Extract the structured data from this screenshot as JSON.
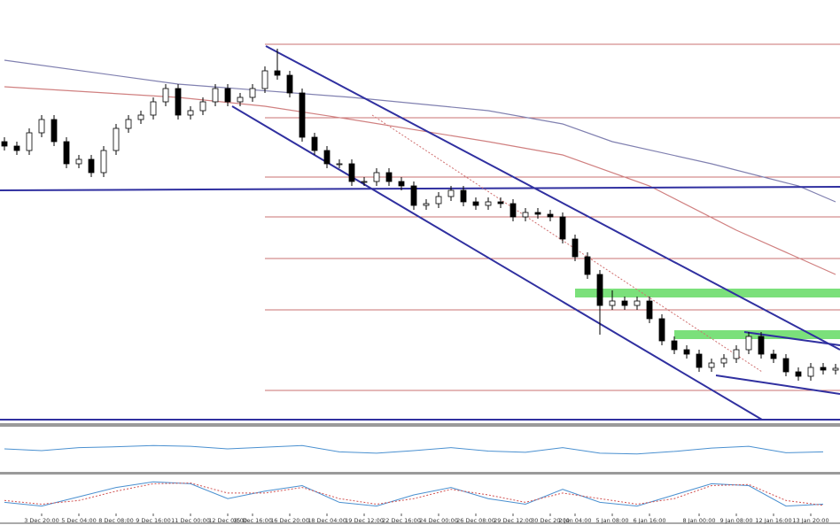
{
  "chart_data": {
    "type": "candlestick",
    "categories": [
      null,
      null,
      null,
      "3 Dec 20:00",
      null,
      null,
      "5 Dec 04:00",
      null,
      null,
      "8 Dec 08:00",
      null,
      null,
      "9 Dec 16:00",
      null,
      null,
      "11 Dec 00:00",
      null,
      null,
      "12 Dec 08:00",
      null,
      "15 Dec 16:00",
      null,
      null,
      "16 Dec 20:00",
      null,
      null,
      "18 Dec 04:00",
      null,
      null,
      "19 Dec 12:00",
      null,
      null,
      "22 Dec 16:00",
      null,
      null,
      "24 Dec 00:00",
      null,
      null,
      "26 Dec 08:00",
      null,
      null,
      "29 Dec 12:00",
      null,
      null,
      "30 Dec 20:00",
      null,
      "2 Jan 04:00",
      null,
      null,
      "5 Jan 08:00",
      null,
      null,
      "6 Jan 16:00",
      null,
      null,
      null,
      "8 Jan 00:00",
      null,
      null,
      "9 Jan 08:00",
      null,
      null,
      "12 Jan 16:00",
      null,
      null,
      "13 Jan 20:00",
      null,
      null
    ],
    "open": [
      318,
      313,
      308,
      328,
      343,
      318,
      293,
      298,
      283,
      308,
      333,
      343,
      348,
      363,
      378,
      348,
      353,
      363,
      378,
      363,
      368,
      378,
      398,
      393,
      373,
      323,
      308,
      293,
      293,
      273,
      273,
      283,
      273,
      268,
      246,
      248,
      256,
      263,
      250,
      246,
      250,
      248,
      233,
      238,
      236,
      233,
      208,
      188,
      168,
      133,
      138,
      133,
      138,
      118,
      93,
      83,
      78,
      63,
      68,
      73,
      83,
      98,
      78,
      73,
      58,
      53,
      63,
      60
    ],
    "high": [
      323,
      318,
      333,
      348,
      348,
      323,
      303,
      303,
      313,
      338,
      348,
      353,
      368,
      383,
      383,
      358,
      368,
      383,
      383,
      373,
      383,
      403,
      423,
      398,
      378,
      328,
      313,
      298,
      298,
      278,
      288,
      288,
      278,
      273,
      253,
      261,
      268,
      268,
      255,
      255,
      255,
      253,
      243,
      243,
      241,
      238,
      213,
      193,
      173,
      150,
      143,
      143,
      143,
      123,
      98,
      88,
      83,
      73,
      78,
      88,
      103,
      103,
      83,
      78,
      63,
      68,
      68,
      67
    ],
    "low": [
      308,
      303,
      303,
      323,
      313,
      288,
      288,
      278,
      278,
      303,
      328,
      338,
      343,
      358,
      343,
      343,
      348,
      358,
      358,
      358,
      363,
      373,
      388,
      368,
      318,
      303,
      288,
      288,
      268,
      268,
      268,
      268,
      263,
      241,
      241,
      243,
      251,
      245,
      241,
      241,
      243,
      228,
      228,
      231,
      228,
      203,
      183,
      163,
      100,
      128,
      128,
      128,
      113,
      88,
      78,
      73,
      58,
      58,
      63,
      68,
      78,
      73,
      68,
      53,
      48,
      48,
      55,
      55
    ],
    "close": [
      313,
      308,
      328,
      343,
      318,
      293,
      298,
      283,
      308,
      333,
      343,
      348,
      363,
      378,
      348,
      353,
      363,
      378,
      363,
      368,
      378,
      398,
      393,
      373,
      323,
      308,
      293,
      293,
      273,
      273,
      283,
      273,
      268,
      246,
      248,
      256,
      263,
      250,
      246,
      250,
      248,
      233,
      238,
      236,
      233,
      208,
      188,
      168,
      133,
      138,
      133,
      138,
      118,
      93,
      83,
      78,
      63,
      68,
      73,
      83,
      98,
      78,
      73,
      58,
      53,
      63,
      60,
      62
    ],
    "ylim": [
      0,
      478
    ],
    "series": [
      {
        "color": "#d08080",
        "x": [
          0,
          14,
          21,
          28,
          39,
          45,
          52,
          59,
          67
        ],
        "values": [
          380,
          368,
          358,
          343,
          318,
          303,
          268,
          218,
          168
        ]
      },
      {
        "color": "#8080b0",
        "x": [
          0,
          14,
          28,
          39,
          45,
          49,
          57,
          64,
          67
        ],
        "values": [
          410,
          383,
          368,
          353,
          338,
          318,
          293,
          268,
          250
        ]
      }
    ],
    "fib_levels": [
      428,
      345,
      278,
      233,
      186,
      128,
      37
    ],
    "fib_from": 21,
    "zones": [
      {
        "from": 46,
        "low": 142,
        "high": 152
      },
      {
        "from": 54,
        "low": 95,
        "high": 105
      }
    ],
    "oscillators": {
      "x": [
        0,
        3,
        6,
        9,
        12,
        15,
        18,
        21,
        24,
        27,
        30,
        33,
        36,
        39,
        42,
        45,
        48,
        51,
        54,
        57,
        60,
        63,
        66
      ],
      "ylim": [
        0,
        100
      ],
      "rsi": [
        52,
        48,
        55,
        57,
        60,
        58,
        52,
        56,
        60,
        45,
        42,
        48,
        55,
        47,
        44,
        55,
        42,
        40,
        46,
        54,
        58,
        43,
        45
      ],
      "stoch_main": [
        30,
        20,
        45,
        70,
        85,
        80,
        40,
        60,
        75,
        30,
        20,
        50,
        70,
        40,
        25,
        65,
        30,
        20,
        50,
        80,
        75,
        20,
        25
      ],
      "stoch_signal": [
        35,
        25,
        35,
        60,
        80,
        82,
        55,
        55,
        70,
        40,
        25,
        40,
        65,
        50,
        30,
        55,
        40,
        25,
        40,
        75,
        78,
        35,
        22
      ]
    }
  }
}
